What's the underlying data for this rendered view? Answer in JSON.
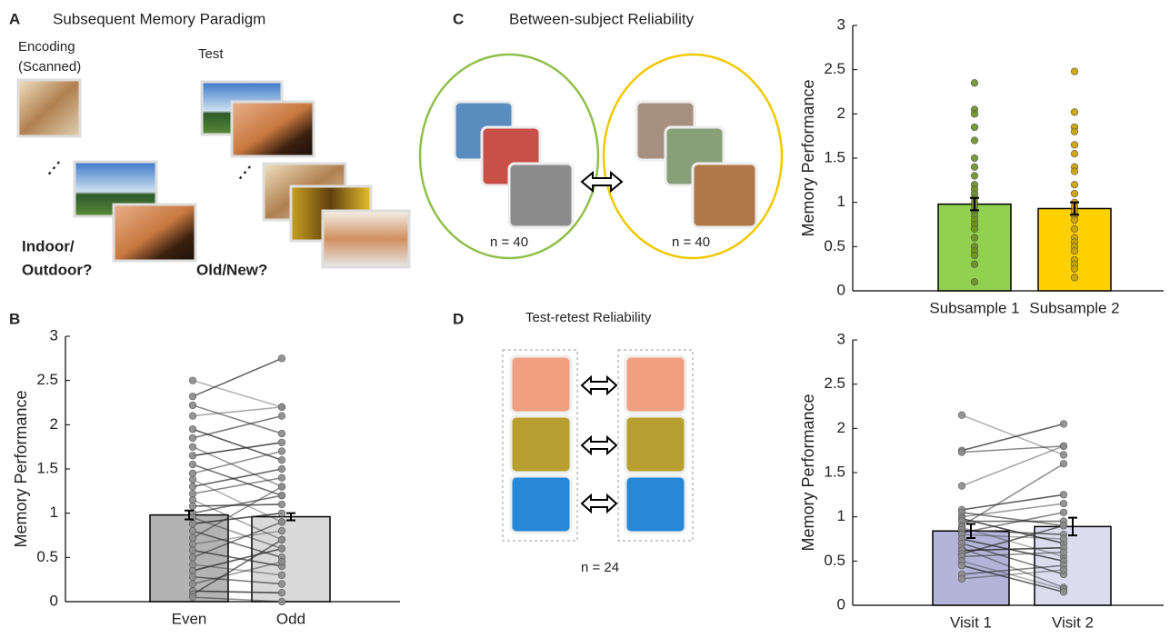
{
  "panels": {
    "A": {
      "letter": "A",
      "title": "Subsequent Memory Paradigm",
      "encoding": [
        "Encoding",
        "(Scanned)"
      ],
      "test": "Test",
      "encoding_question": [
        "Indoor/",
        "Outdoor?"
      ],
      "test_question": "Old/New?"
    },
    "B": {
      "letter": "B"
    },
    "C": {
      "letter": "C",
      "title": "Between-subject Reliability",
      "n_left": "n = 40",
      "n_right": "n = 40"
    },
    "D": {
      "letter": "D",
      "title": "Test-retest Reliability",
      "n": "n = 24"
    }
  },
  "chart_data": [
    {
      "type": "bar",
      "paired": true,
      "ylabel": "Memory Performance",
      "categories": [
        "Even",
        "Odd"
      ],
      "values": [
        0.98,
        0.96
      ],
      "errors": [
        0.05,
        0.04
      ],
      "colors": [
        "#b3b3b3",
        "#d9d9d9"
      ],
      "point_color": "#8c8c8c",
      "ylim": [
        0,
        3
      ],
      "yticks": [
        0,
        0.5,
        1,
        1.5,
        2,
        2.5,
        3
      ],
      "points": [
        [
          2.5,
          2.32,
          2.22,
          2.1,
          1.95,
          1.85,
          1.75,
          1.65,
          1.55,
          1.45,
          1.38,
          1.3,
          1.22,
          1.15,
          1.08,
          1.0,
          0.95,
          0.88,
          0.8,
          0.72,
          0.65,
          0.58,
          0.5,
          0.42,
          0.35,
          0.28,
          0.2,
          0.12,
          0.08,
          0.05
        ],
        [
          2.2,
          2.75,
          1.9,
          2.2,
          1.6,
          2.1,
          1.3,
          1.8,
          1.2,
          1.7,
          0.9,
          1.5,
          1.4,
          0.7,
          1.1,
          1.2,
          0.6,
          1.0,
          0.5,
          1.3,
          0.8,
          0.4,
          0.9,
          0.3,
          0.6,
          0.2,
          0.45,
          0.1,
          0.7,
          0.0
        ]
      ]
    },
    {
      "type": "bar",
      "paired": false,
      "ylabel": "Memory Performance",
      "categories": [
        "Subsample 1",
        "Subsample 2"
      ],
      "values": [
        0.98,
        0.93
      ],
      "errors": [
        0.07,
        0.07
      ],
      "colors": [
        "#92d050",
        "#ffd000"
      ],
      "point_colors": [
        "#6b8e23",
        "#c8a000"
      ],
      "ylim": [
        0,
        3
      ],
      "yticks": [
        0,
        0.5,
        1,
        1.5,
        2,
        2.5,
        3
      ],
      "points": [
        [
          2.35,
          2.05,
          2.0,
          1.85,
          1.7,
          1.5,
          1.4,
          1.3,
          1.2,
          1.15,
          1.1,
          1.05,
          1.0,
          0.95,
          0.9,
          0.85,
          0.8,
          0.75,
          0.7,
          0.6,
          0.5,
          0.45,
          0.4,
          0.3,
          0.1
        ],
        [
          2.48,
          2.02,
          1.85,
          1.8,
          1.65,
          1.55,
          1.4,
          1.35,
          1.2,
          1.1,
          1.0,
          0.95,
          0.9,
          0.85,
          0.8,
          0.7,
          0.6,
          0.55,
          0.5,
          0.45,
          0.35,
          0.3,
          0.25,
          0.15
        ]
      ]
    },
    {
      "type": "bar",
      "paired": true,
      "ylabel": "Memory Performance",
      "categories": [
        "Visit 1",
        "Visit 2"
      ],
      "values": [
        0.84,
        0.89
      ],
      "errors": [
        0.08,
        0.1
      ],
      "colors": [
        "#b4b4d8",
        "#dcdcee"
      ],
      "point_color": "#8c8c8c",
      "ylim": [
        0,
        3
      ],
      "yticks": [
        0,
        0.5,
        1,
        1.5,
        2,
        2.5,
        3
      ],
      "points": [
        [
          2.15,
          1.75,
          1.73,
          1.35,
          1.08,
          1.05,
          1.0,
          0.98,
          0.95,
          0.9,
          0.88,
          0.85,
          0.82,
          0.8,
          0.75,
          0.7,
          0.65,
          0.62,
          0.58,
          0.55,
          0.5,
          0.45,
          0.35,
          0.3
        ],
        [
          1.7,
          2.05,
          1.8,
          1.8,
          1.25,
          0.9,
          1.15,
          0.7,
          0.95,
          1.6,
          0.55,
          0.8,
          1.05,
          0.75,
          0.5,
          0.35,
          0.2,
          0.65,
          0.9,
          0.6,
          0.18,
          0.15,
          0.45,
          0.4
        ]
      ]
    }
  ]
}
